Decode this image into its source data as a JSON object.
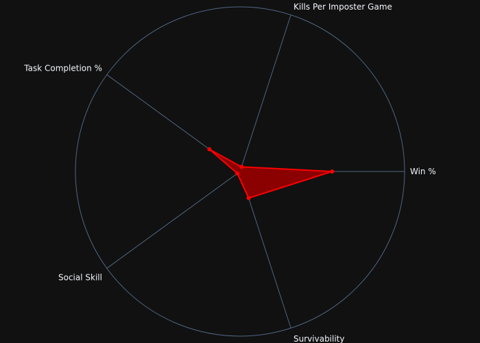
{
  "chart_data": {
    "type": "radar",
    "title": "",
    "axes": [
      "Win %",
      "Kills Per Imposter Game",
      "Task Completion %",
      "Social Skill",
      "Survivability"
    ],
    "range": [
      0,
      1
    ],
    "values": [
      0.56,
      0.03,
      0.23,
      0.02,
      0.17
    ],
    "grid": true,
    "legend": "none",
    "colors": {
      "background": "#111111",
      "grid": "#506784",
      "series_line": "#ff0000",
      "series_fill": "#8b0000",
      "label": "#f2f5fa"
    }
  }
}
